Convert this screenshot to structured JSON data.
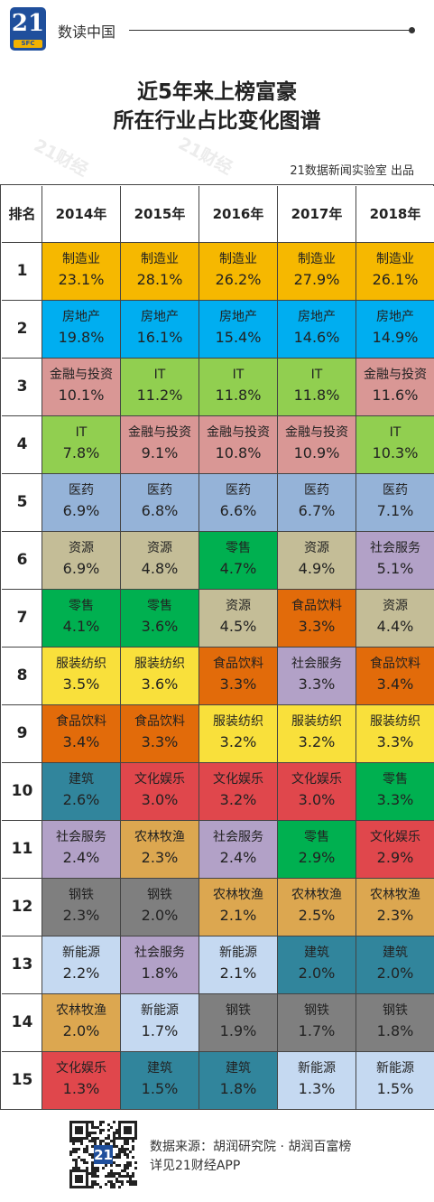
{
  "header": {
    "logo_number": "21",
    "logo_sub": "SFC",
    "column_name": "数读中国"
  },
  "title": {
    "line1": "近5年来上榜富豪",
    "line2": "所在行业占比变化图谱"
  },
  "watermark": "21财经",
  "credit": "21数据新闻实验室 出品",
  "footer": {
    "source": "数据来源：胡润研究院 · 胡润百富榜",
    "app_hint": "详见21财经APP",
    "qr_logo": "21"
  },
  "colors": {
    "制造业": "#f6b800",
    "房地产": "#00aef0",
    "金融与投资": "#d99795",
    "IT": "#91cf50",
    "医药": "#95b3d8",
    "资源": "#c4bd97",
    "零售": "#00b050",
    "服装纺织": "#f9e03b",
    "食品饮料": "#e26b0a",
    "建筑": "#31859c",
    "文化娱乐": "#e0474c",
    "社会服务": "#b2a1c7",
    "农林牧渔": "#dca750",
    "钢铁": "#7f7f7f",
    "新能源": "#c5d9f1"
  },
  "chart_data": {
    "type": "table",
    "title": "近5年来上榜富豪所在行业占比变化图谱",
    "rank_header": "排名",
    "years": [
      "2014年",
      "2015年",
      "2016年",
      "2017年",
      "2018年"
    ],
    "ranks": [
      "1",
      "2",
      "3",
      "4",
      "5",
      "6",
      "7",
      "8",
      "9",
      "10",
      "11",
      "12",
      "13",
      "14",
      "15"
    ],
    "columns": [
      {
        "year": "2014年",
        "entries": [
          {
            "industry": "制造业",
            "share": "23.1%"
          },
          {
            "industry": "房地产",
            "share": "19.8%"
          },
          {
            "industry": "金融与投资",
            "share": "10.1%"
          },
          {
            "industry": "IT",
            "share": "7.8%"
          },
          {
            "industry": "医药",
            "share": "6.9%"
          },
          {
            "industry": "资源",
            "share": "6.9%"
          },
          {
            "industry": "零售",
            "share": "4.1%"
          },
          {
            "industry": "服装纺织",
            "share": "3.5%"
          },
          {
            "industry": "食品饮料",
            "share": "3.4%"
          },
          {
            "industry": "建筑",
            "share": "2.6%"
          },
          {
            "industry": "社会服务",
            "share": "2.4%"
          },
          {
            "industry": "钢铁",
            "share": "2.3%"
          },
          {
            "industry": "新能源",
            "share": "2.2%"
          },
          {
            "industry": "农林牧渔",
            "share": "2.0%"
          },
          {
            "industry": "文化娱乐",
            "share": "1.3%"
          }
        ]
      },
      {
        "year": "2015年",
        "entries": [
          {
            "industry": "制造业",
            "share": "28.1%"
          },
          {
            "industry": "房地产",
            "share": "16.1%"
          },
          {
            "industry": "IT",
            "share": "11.2%"
          },
          {
            "industry": "金融与投资",
            "share": "9.1%"
          },
          {
            "industry": "医药",
            "share": "6.8%"
          },
          {
            "industry": "资源",
            "share": "4.8%"
          },
          {
            "industry": "零售",
            "share": "3.6%"
          },
          {
            "industry": "服装纺织",
            "share": "3.6%"
          },
          {
            "industry": "食品饮料",
            "share": "3.3%"
          },
          {
            "industry": "文化娱乐",
            "share": "3.0%"
          },
          {
            "industry": "农林牧渔",
            "share": "2.3%"
          },
          {
            "industry": "钢铁",
            "share": "2.0%"
          },
          {
            "industry": "社会服务",
            "share": "1.8%"
          },
          {
            "industry": "新能源",
            "share": "1.7%"
          },
          {
            "industry": "建筑",
            "share": "1.5%"
          }
        ]
      },
      {
        "year": "2016年",
        "entries": [
          {
            "industry": "制造业",
            "share": "26.2%"
          },
          {
            "industry": "房地产",
            "share": "15.4%"
          },
          {
            "industry": "IT",
            "share": "11.8%"
          },
          {
            "industry": "金融与投资",
            "share": "10.8%"
          },
          {
            "industry": "医药",
            "share": "6.6%"
          },
          {
            "industry": "零售",
            "share": "4.7%"
          },
          {
            "industry": "资源",
            "share": "4.5%"
          },
          {
            "industry": "食品饮料",
            "share": "3.3%"
          },
          {
            "industry": "服装纺织",
            "share": "3.2%"
          },
          {
            "industry": "文化娱乐",
            "share": "3.2%"
          },
          {
            "industry": "社会服务",
            "share": "2.4%"
          },
          {
            "industry": "农林牧渔",
            "share": "2.1%"
          },
          {
            "industry": "新能源",
            "share": "2.1%"
          },
          {
            "industry": "钢铁",
            "share": "1.9%"
          },
          {
            "industry": "建筑",
            "share": "1.8%"
          }
        ]
      },
      {
        "year": "2017年",
        "entries": [
          {
            "industry": "制造业",
            "share": "27.9%"
          },
          {
            "industry": "房地产",
            "share": "14.6%"
          },
          {
            "industry": "IT",
            "share": "11.8%"
          },
          {
            "industry": "金融与投资",
            "share": "10.9%"
          },
          {
            "industry": "医药",
            "share": "6.7%"
          },
          {
            "industry": "资源",
            "share": "4.9%"
          },
          {
            "industry": "食品饮料",
            "share": "3.3%"
          },
          {
            "industry": "社会服务",
            "share": "3.3%"
          },
          {
            "industry": "服装纺织",
            "share": "3.2%"
          },
          {
            "industry": "文化娱乐",
            "share": "3.0%"
          },
          {
            "industry": "零售",
            "share": "2.9%"
          },
          {
            "industry": "农林牧渔",
            "share": "2.5%"
          },
          {
            "industry": "建筑",
            "share": "2.0%"
          },
          {
            "industry": "钢铁",
            "share": "1.7%"
          },
          {
            "industry": "新能源",
            "share": "1.3%"
          }
        ]
      },
      {
        "year": "2018年",
        "entries": [
          {
            "industry": "制造业",
            "share": "26.1%"
          },
          {
            "industry": "房地产",
            "share": "14.9%"
          },
          {
            "industry": "金融与投资",
            "share": "11.6%"
          },
          {
            "industry": "IT",
            "share": "10.3%"
          },
          {
            "industry": "医药",
            "share": "7.1%"
          },
          {
            "industry": "社会服务",
            "share": "5.1%"
          },
          {
            "industry": "资源",
            "share": "4.4%"
          },
          {
            "industry": "食品饮料",
            "share": "3.4%"
          },
          {
            "industry": "服装纺织",
            "share": "3.3%"
          },
          {
            "industry": "零售",
            "share": "3.3%"
          },
          {
            "industry": "文化娱乐",
            "share": "2.9%"
          },
          {
            "industry": "农林牧渔",
            "share": "2.3%"
          },
          {
            "industry": "建筑",
            "share": "2.0%"
          },
          {
            "industry": "钢铁",
            "share": "1.8%"
          },
          {
            "industry": "新能源",
            "share": "1.5%"
          }
        ]
      }
    ]
  }
}
